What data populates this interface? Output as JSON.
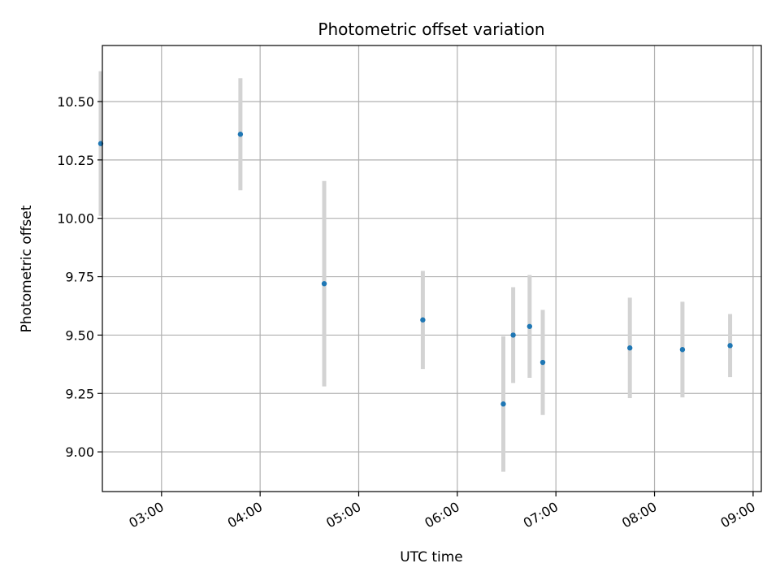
{
  "chart_data": {
    "type": "scatter",
    "title": "Photometric offset variation",
    "xlabel": "UTC time",
    "ylabel": "Photometric offset",
    "x_axis_kind": "time",
    "xlim": [
      "02:24",
      "09:05"
    ],
    "ylim": [
      8.83,
      10.74
    ],
    "grid": true,
    "x_ticks": [
      "03:00",
      "04:00",
      "05:00",
      "06:00",
      "07:00",
      "08:00",
      "09:00"
    ],
    "y_ticks": [
      "9.00",
      "9.25",
      "9.50",
      "9.75",
      "10.00",
      "10.25",
      "10.50"
    ],
    "colors": {
      "marker": "#1f77b4",
      "errorbar": "#d3d3d3",
      "grid": "#b0b0b0"
    },
    "series": [
      {
        "points": [
          {
            "x": "02:23",
            "y": 10.32,
            "yerr": 0.31
          },
          {
            "x": "03:48",
            "y": 10.36,
            "yerr": 0.24
          },
          {
            "x": "04:39",
            "y": 9.72,
            "yerr": 0.44
          },
          {
            "x": "05:39",
            "y": 9.565,
            "yerr": 0.21
          },
          {
            "x": "06:28",
            "y": 9.205,
            "yerr": 0.29
          },
          {
            "x": "06:34",
            "y": 9.5,
            "yerr": 0.205
          },
          {
            "x": "06:44",
            "y": 9.537,
            "yerr": 0.22
          },
          {
            "x": "06:52",
            "y": 9.383,
            "yerr": 0.225
          },
          {
            "x": "07:45",
            "y": 9.445,
            "yerr": 0.215
          },
          {
            "x": "08:17",
            "y": 9.438,
            "yerr": 0.205
          },
          {
            "x": "08:46",
            "y": 9.455,
            "yerr": 0.135
          }
        ]
      }
    ]
  }
}
